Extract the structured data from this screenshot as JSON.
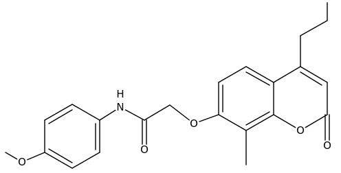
{
  "atoms": [
    {
      "label": "O"
    },
    {
      "label": "N"
    },
    {
      "label": "H"
    },
    {
      "label": "O"
    },
    {
      "label": "O"
    },
    {
      "label": "O"
    },
    {
      "label": "O"
    }
  ]
}
